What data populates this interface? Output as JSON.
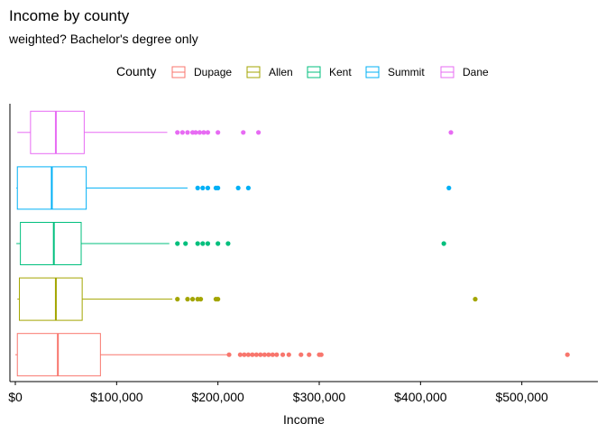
{
  "chart_data": {
    "type": "boxplot",
    "title": "Income by county",
    "subtitle": "weighted? Bachelor's degree only",
    "xlabel": "Income",
    "ylabel": "",
    "xlim": [
      -3000,
      575000
    ],
    "x_ticks": [
      0,
      100000,
      200000,
      300000,
      400000,
      500000
    ],
    "x_tick_labels": [
      "$0",
      "$100,000",
      "$200,000",
      "$300,000",
      "$400,000",
      "$500,000"
    ],
    "grid": false,
    "legend": {
      "title": "County",
      "placement": "top",
      "entries": [
        "Dupage",
        "Allen",
        "Kent",
        "Summit",
        "Dane"
      ]
    },
    "series": [
      {
        "name": "Dupage",
        "color": "#F8766D",
        "min": 0,
        "q1": 2000,
        "median": 42000,
        "q3": 84000,
        "whisker_high": 210000,
        "outliers": [
          211000,
          222000,
          226000,
          230000,
          234000,
          238000,
          242000,
          246000,
          250000,
          254000,
          258000,
          264000,
          270000,
          282000,
          290000,
          300000,
          302000,
          545000
        ]
      },
      {
        "name": "Allen",
        "color": "#A3A500",
        "min": 2000,
        "q1": 4000,
        "median": 40000,
        "q3": 66000,
        "whisker_high": 155000,
        "outliers": [
          160000,
          170000,
          175000,
          180000,
          183000,
          198000,
          200000,
          454000
        ]
      },
      {
        "name": "Kent",
        "color": "#00BF7D",
        "min": 1000,
        "q1": 5000,
        "median": 38000,
        "q3": 65000,
        "whisker_high": 152000,
        "outliers": [
          160000,
          168000,
          180000,
          185000,
          190000,
          200000,
          210000,
          423000
        ]
      },
      {
        "name": "Summit",
        "color": "#00B0F6",
        "min": 1000,
        "q1": 2000,
        "median": 36000,
        "q3": 70000,
        "whisker_high": 170000,
        "outliers": [
          180000,
          185000,
          190000,
          198000,
          200000,
          220000,
          230000,
          428000
        ]
      },
      {
        "name": "Dane",
        "color": "#E76BF3",
        "min": 2000,
        "q1": 15000,
        "median": 40000,
        "q3": 68000,
        "whisker_high": 150000,
        "outliers": [
          160000,
          165000,
          170000,
          175000,
          178000,
          182000,
          186000,
          190000,
          200000,
          225000,
          240000,
          430000
        ]
      }
    ]
  }
}
